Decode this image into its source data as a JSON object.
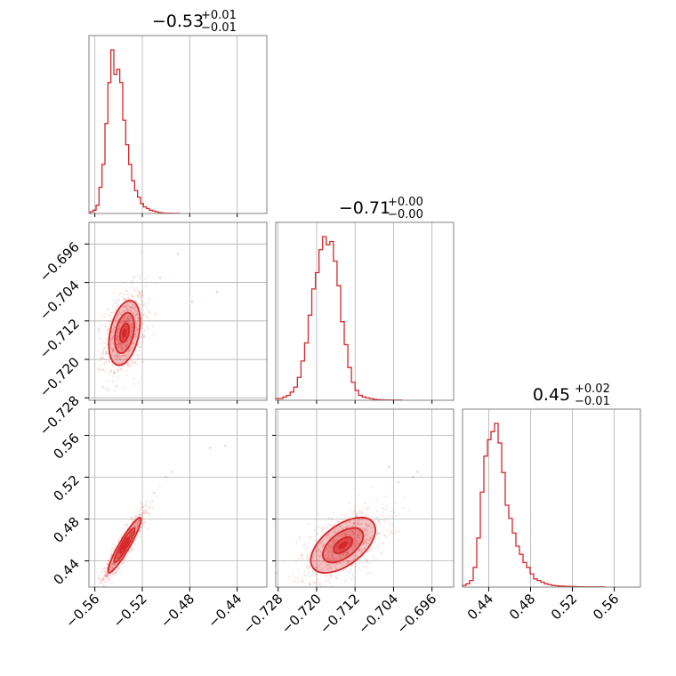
{
  "colors": {
    "accent": "#d62728",
    "grid": "#b0b0b0",
    "frame": "#808080"
  },
  "chart_data": {
    "type": "corner",
    "grid": true,
    "parameters": [
      {
        "range": [
          -0.565,
          -0.415
        ],
        "ticks": [
          -0.56,
          -0.52,
          -0.48,
          -0.44
        ],
        "tick_labels": [
          "−0.56",
          "−0.52",
          "−0.48",
          "−0.44"
        ],
        "title": {
          "main": "−0.53",
          "sup": "+0.01",
          "sub": "−0.01"
        }
      },
      {
        "range": [
          -0.7285,
          -0.6915
        ],
        "ticks": [
          -0.728,
          -0.72,
          -0.712,
          -0.704,
          -0.696
        ],
        "tick_labels": [
          "−0.728",
          "−0.720",
          "−0.712",
          "−0.704",
          "−0.696"
        ],
        "title": {
          "main": "−0.71",
          "sup": "+0.00",
          "sub": "−0.00"
        }
      },
      {
        "range": [
          0.415,
          0.585
        ],
        "ticks": [
          0.44,
          0.48,
          0.52,
          0.56
        ],
        "tick_labels": [
          "0.44",
          "0.48",
          "0.52",
          "0.56"
        ],
        "title": {
          "main": "0.45",
          "sup": "+0.02",
          "sub": "−0.01"
        }
      }
    ],
    "histograms": [
      {
        "param": 0,
        "bin_start": -0.564,
        "bin_width": 0.0025,
        "counts": [
          0.01,
          0.02,
          0.05,
          0.16,
          0.3,
          0.55,
          0.8,
          1.0,
          0.85,
          0.88,
          0.8,
          0.57,
          0.42,
          0.3,
          0.2,
          0.14,
          0.1,
          0.06,
          0.04,
          0.03,
          0.02,
          0.015,
          0.01,
          0.005,
          0.003,
          0.002,
          0.002,
          0.001,
          0.001,
          0.001
        ]
      },
      {
        "param": 1,
        "bin_start": -0.7285,
        "bin_width": 0.00075,
        "counts": [
          0.01,
          0.01,
          0.02,
          0.03,
          0.05,
          0.08,
          0.14,
          0.24,
          0.35,
          0.52,
          0.68,
          0.78,
          0.92,
          1.0,
          0.95,
          0.97,
          0.85,
          0.7,
          0.48,
          0.34,
          0.2,
          0.11,
          0.06,
          0.03,
          0.02,
          0.015,
          0.01,
          0.006,
          0.004,
          0.003,
          0.002,
          0.002,
          0.001,
          0.001,
          0.001
        ]
      },
      {
        "param": 2,
        "bin_start": 0.415,
        "bin_width": 0.0034,
        "counts": [
          0.01,
          0.02,
          0.04,
          0.12,
          0.3,
          0.58,
          0.8,
          0.9,
          0.95,
          1.0,
          0.88,
          0.7,
          0.5,
          0.42,
          0.33,
          0.25,
          0.2,
          0.15,
          0.12,
          0.08,
          0.05,
          0.04,
          0.03,
          0.02,
          0.015,
          0.01,
          0.008,
          0.006,
          0.005,
          0.004,
          0.003,
          0.003,
          0.002,
          0.002,
          0.001,
          0.001,
          0.001,
          0.001,
          0.001,
          0.001
        ]
      }
    ],
    "pairs": [
      {
        "xparam": 0,
        "yparam": 1,
        "center": [
          -0.535,
          -0.7145
        ],
        "sd": [
          0.0055,
          0.0028
        ],
        "rho": 0.35,
        "outliers": [
          [
            -0.49,
            -0.698
          ],
          [
            -0.505,
            -0.703
          ],
          [
            -0.52,
            -0.706
          ],
          [
            -0.478,
            -0.708
          ],
          [
            -0.457,
            -0.706
          ]
        ]
      },
      {
        "xparam": 0,
        "yparam": 2,
        "center": [
          -0.535,
          0.455
        ],
        "sd": [
          0.0058,
          0.011
        ],
        "rho": 0.93,
        "outliers": [
          [
            -0.51,
            0.505
          ],
          [
            -0.5,
            0.52
          ],
          [
            -0.495,
            0.525
          ],
          [
            -0.463,
            0.548
          ],
          [
            -0.45,
            0.55
          ]
        ]
      },
      {
        "xparam": 1,
        "yparam": 2,
        "center": [
          -0.7145,
          0.455
        ],
        "sd": [
          0.0028,
          0.011
        ],
        "rho": 0.55,
        "outliers": [
          [
            -0.703,
            0.515
          ],
          [
            -0.7,
            0.52
          ],
          [
            -0.705,
            0.53
          ],
          [
            -0.699,
            0.525
          ]
        ]
      }
    ]
  }
}
